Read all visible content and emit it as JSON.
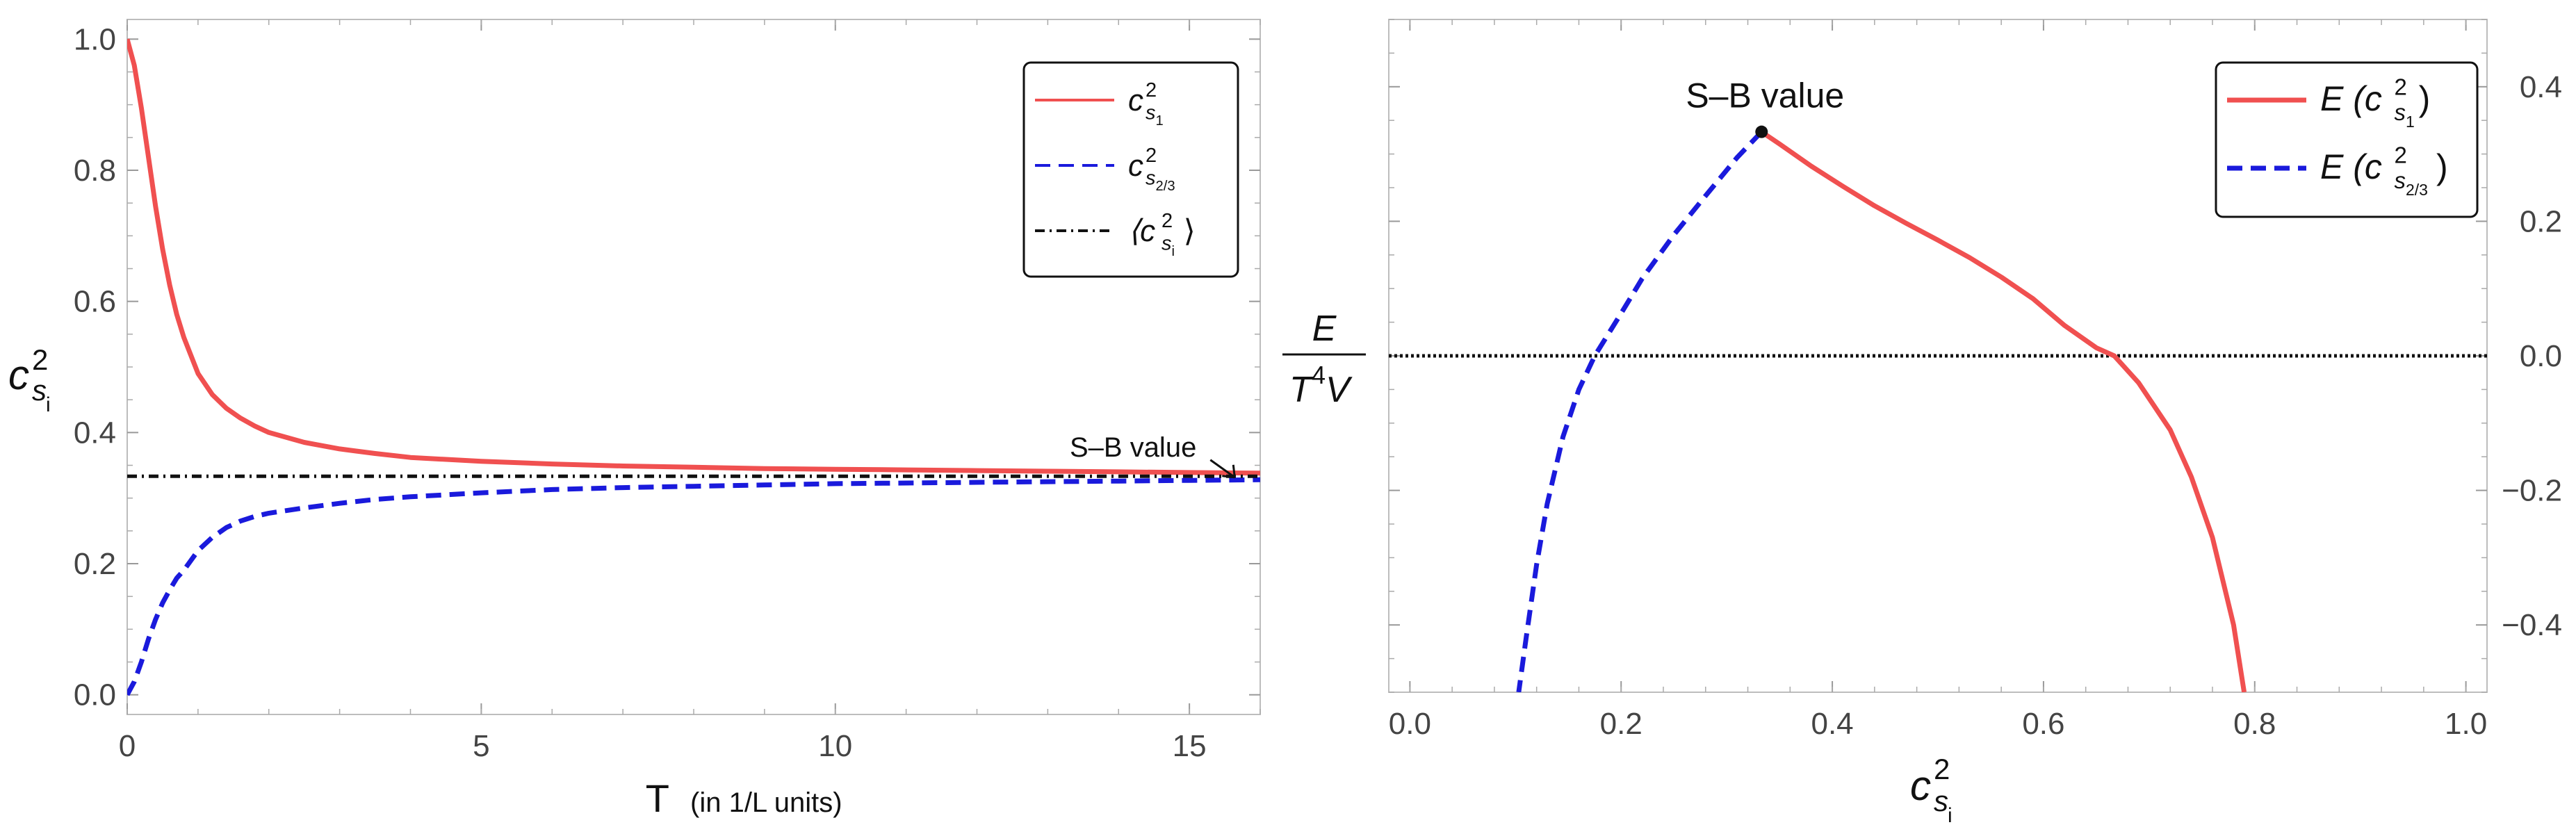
{
  "chart_data": [
    {
      "type": "line",
      "xlim": [
        0,
        16
      ],
      "ylim": [
        -0.03,
        1.03
      ],
      "x_ticks": [
        0,
        5,
        10,
        15
      ],
      "y_ticks": [
        0.0,
        0.2,
        0.4,
        0.6,
        0.8,
        1.0
      ],
      "x_tick_labels": [
        "0",
        "5",
        "10",
        "15"
      ],
      "y_tick_labels": [
        "0.0",
        "0.2",
        "0.4",
        "0.6",
        "0.8",
        "1.0"
      ],
      "xlabel": "T",
      "xlabel_note": "(in 1/L units)",
      "ylabel": "c",
      "ylabel_sup": "2",
      "ylabel_sub": "s",
      "ylabel_subsub": "i",
      "grid": false,
      "legend_position": "top-right",
      "legend": [
        {
          "base": "c",
          "sup": "2",
          "sub": "s",
          "subsub": "1",
          "style": "solid",
          "color": "#f05050"
        },
        {
          "base": "c",
          "sup": "2",
          "sub": "s",
          "subsub": "2/3",
          "style": "dashed",
          "color": "#1a1adc"
        },
        {
          "base": "⟨c",
          "sup": "2",
          "sub": "s",
          "subsub": "i",
          "close": "⟩",
          "style": "dashdot",
          "color": "#111111"
        }
      ],
      "annotation": {
        "text": "S–B value",
        "x": 15.1,
        "y": 0.39
      },
      "series": [
        {
          "name": "c_s1^2",
          "color": "#f05050",
          "style": "solid",
          "x": [
            0,
            0.1,
            0.2,
            0.3,
            0.4,
            0.5,
            0.6,
            0.7,
            0.8,
            1.0,
            1.2,
            1.4,
            1.6,
            1.8,
            2.0,
            2.5,
            3.0,
            3.5,
            4.0,
            5.0,
            6.0,
            7.0,
            8.0,
            9.0,
            10.0,
            11.0,
            12.0,
            13.0,
            14.0,
            15.0,
            16.0
          ],
          "y": [
            1.0,
            0.96,
            0.895,
            0.82,
            0.745,
            0.68,
            0.625,
            0.58,
            0.545,
            0.49,
            0.458,
            0.437,
            0.422,
            0.41,
            0.4,
            0.385,
            0.375,
            0.368,
            0.362,
            0.356,
            0.352,
            0.349,
            0.347,
            0.345,
            0.344,
            0.343,
            0.342,
            0.341,
            0.34,
            0.339,
            0.338
          ]
        },
        {
          "name": "c_s2/3^2",
          "color": "#1a1adc",
          "style": "dashed",
          "x": [
            0,
            0.1,
            0.2,
            0.3,
            0.4,
            0.5,
            0.6,
            0.7,
            0.8,
            1.0,
            1.2,
            1.4,
            1.6,
            1.8,
            2.0,
            2.5,
            3.0,
            3.5,
            4.0,
            5.0,
            6.0,
            7.0,
            8.0,
            9.0,
            10.0,
            11.0,
            12.0,
            13.0,
            14.0,
            15.0,
            16.0
          ],
          "y": [
            0.0,
            0.02,
            0.05,
            0.085,
            0.115,
            0.14,
            0.16,
            0.178,
            0.19,
            0.22,
            0.24,
            0.255,
            0.265,
            0.272,
            0.277,
            0.285,
            0.292,
            0.298,
            0.302,
            0.308,
            0.313,
            0.316,
            0.318,
            0.32,
            0.322,
            0.323,
            0.324,
            0.325,
            0.326,
            0.327,
            0.328
          ]
        },
        {
          "name": "mean",
          "color": "#111111",
          "style": "dashdot",
          "x": [
            0,
            16
          ],
          "y": [
            0.3333,
            0.3333
          ]
        }
      ]
    },
    {
      "type": "line",
      "xlim": [
        -0.02,
        1.02
      ],
      "ylim": [
        -0.5,
        0.5
      ],
      "x_ticks": [
        0.0,
        0.2,
        0.4,
        0.6,
        0.8,
        1.0
      ],
      "y_ticks": [
        -0.4,
        -0.2,
        0.0,
        0.2,
        0.4
      ],
      "x_tick_labels": [
        "0.0",
        "0.2",
        "0.4",
        "0.6",
        "0.8",
        "1.0"
      ],
      "y_tick_labels": [
        "−0.4",
        "−0.2",
        "0.0",
        "0.2",
        "0.4"
      ],
      "xlabel": "c",
      "xlabel_sup": "2",
      "xlabel_sub": "s",
      "xlabel_subsub": "i",
      "ylabel_num": "E",
      "ylabel_den": "T",
      "ylabel_den_sup": "4",
      "ylabel_den_tail": " V",
      "grid": false,
      "legend_position": "top-right",
      "legend": [
        {
          "base": "E (c",
          "sup": "2",
          "sub": "s",
          "subsub": "1",
          "close": ")",
          "style": "solid",
          "color": "#f05050"
        },
        {
          "base": "E (c",
          "sup": "2",
          "sub": "s",
          "subsub": "2/3",
          "close": ")",
          "style": "dashed",
          "color": "#1a1adc"
        }
      ],
      "annotation": {
        "text": "S–B value",
        "x": 0.333,
        "y": 0.333
      },
      "reference_line": {
        "y": 0.0,
        "style": "dotted",
        "color": "#111111"
      },
      "series": [
        {
          "name": "E(c_s1^2)",
          "color": "#f05050",
          "style": "solid",
          "x": [
            0.333,
            0.35,
            0.38,
            0.41,
            0.44,
            0.47,
            0.5,
            0.53,
            0.56,
            0.59,
            0.62,
            0.65,
            0.667,
            0.69,
            0.72,
            0.74,
            0.76,
            0.78,
            0.79
          ],
          "y": [
            0.333,
            0.315,
            0.282,
            0.252,
            0.223,
            0.197,
            0.172,
            0.146,
            0.117,
            0.085,
            0.045,
            0.012,
            0.0,
            -0.04,
            -0.11,
            -0.18,
            -0.27,
            -0.4,
            -0.5
          ]
        },
        {
          "name": "E(c_s2/3^2)",
          "color": "#1a1adc",
          "style": "dashed",
          "x": [
            0.333,
            0.31,
            0.28,
            0.25,
            0.22,
            0.2,
            0.175,
            0.16,
            0.145,
            0.13,
            0.12,
            0.11,
            0.103
          ],
          "y": [
            0.333,
            0.295,
            0.238,
            0.18,
            0.115,
            0.063,
            0.0,
            -0.05,
            -0.12,
            -0.22,
            -0.31,
            -0.42,
            -0.5
          ]
        }
      ]
    }
  ]
}
